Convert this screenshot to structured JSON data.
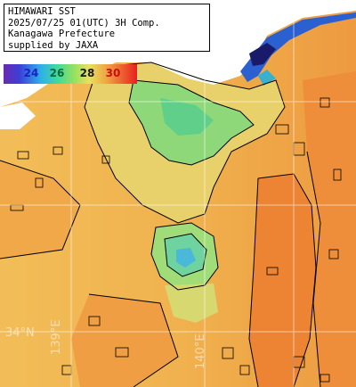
{
  "info_box": {
    "line1": "HIMAWARI SST",
    "line2": "2025/07/25 01(UTC) 3H Comp.",
    "line3": "Kanagawa Prefecture",
    "line4": "supplied by JAXA"
  },
  "colorbar": {
    "ticks": [
      "24",
      "26",
      "28",
      "30"
    ],
    "tick_colors": [
      "#1a20c8",
      "#0a6a3a",
      "#1a1a1a",
      "#c81010"
    ]
  },
  "grid_labels": {
    "lat": "34°N",
    "lon1": "139°E",
    "lon2": "140°E"
  },
  "colors": {
    "land": "#ffffff",
    "sea_warm": "#f0b050",
    "sea_hot": "#ef8a3a",
    "sea_mid": "#e6d46a",
    "sea_cool": "#7fd67a",
    "sea_cold": "#3aa0e0",
    "sea_coldest": "#2a3ab0"
  }
}
